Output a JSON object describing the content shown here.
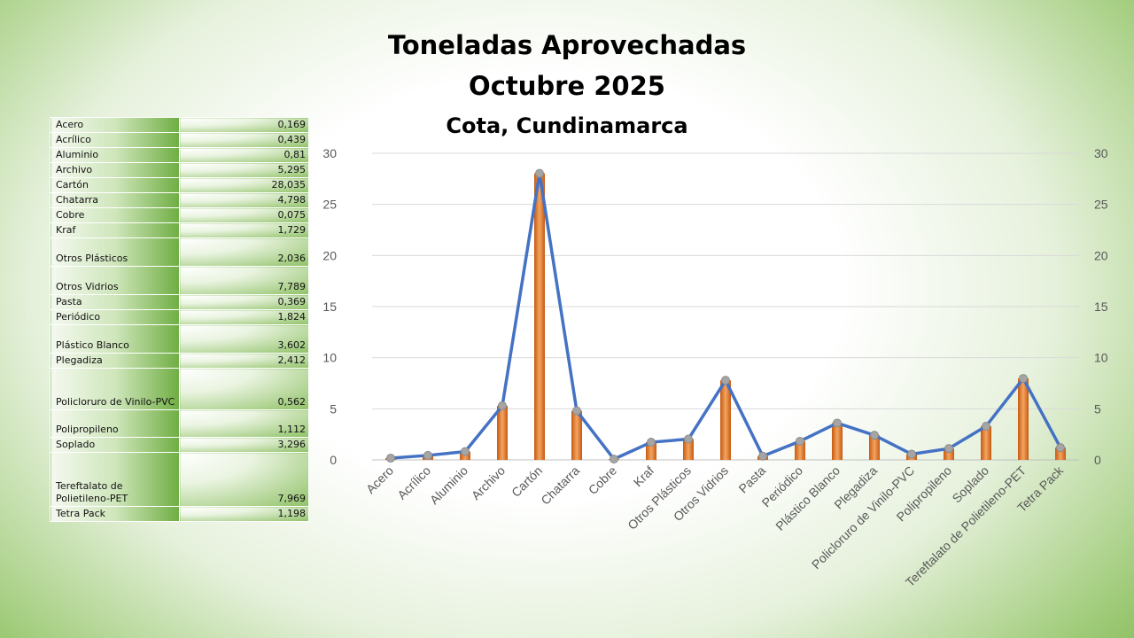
{
  "chart_data": {
    "type": "bar+line",
    "title": "Toneladas Aprovechadas",
    "subtitle": "Octubre 2025",
    "location": "Cota, Cundinamarca",
    "categories": [
      "Acero",
      "Acrílico",
      "Aluminio",
      "Archivo",
      "Cartón",
      "Chatarra",
      "Cobre",
      "Kraf",
      "Otros Plásticos",
      "Otros Vidrios",
      "Pasta",
      "Periódico",
      "Plástico Blanco",
      "Plegadiza",
      "Policloruro de Vinilo-PVC",
      "Polipropileno",
      "Soplado",
      "Tereftalato de Polietileno-PET",
      "Tetra Pack"
    ],
    "values": [
      0.169,
      0.439,
      0.81,
      5.295,
      28.035,
      4.798,
      0.075,
      1.729,
      2.036,
      7.789,
      0.369,
      1.824,
      3.602,
      2.412,
      0.562,
      1.112,
      3.296,
      7.969,
      1.198
    ],
    "value_labels": [
      "0,169",
      "0,439",
      "0,81",
      "5,295",
      "28,035",
      "4,798",
      "0,075",
      "1,729",
      "2,036",
      "7,789",
      "0,369",
      "1,824",
      "3,602",
      "2,412",
      "0,562",
      "1,112",
      "3,296",
      "7,969",
      "1,198"
    ],
    "ylim": [
      0,
      30
    ],
    "yticks": [
      0,
      5,
      10,
      15,
      20,
      25,
      30
    ],
    "secondary_yticks": [
      0,
      5,
      10,
      15,
      20,
      25,
      30
    ],
    "grid": true,
    "legend": "none",
    "colors": {
      "bar": "#ed7d31",
      "line": "#4472c4",
      "marker": "#a5a5a5"
    }
  }
}
